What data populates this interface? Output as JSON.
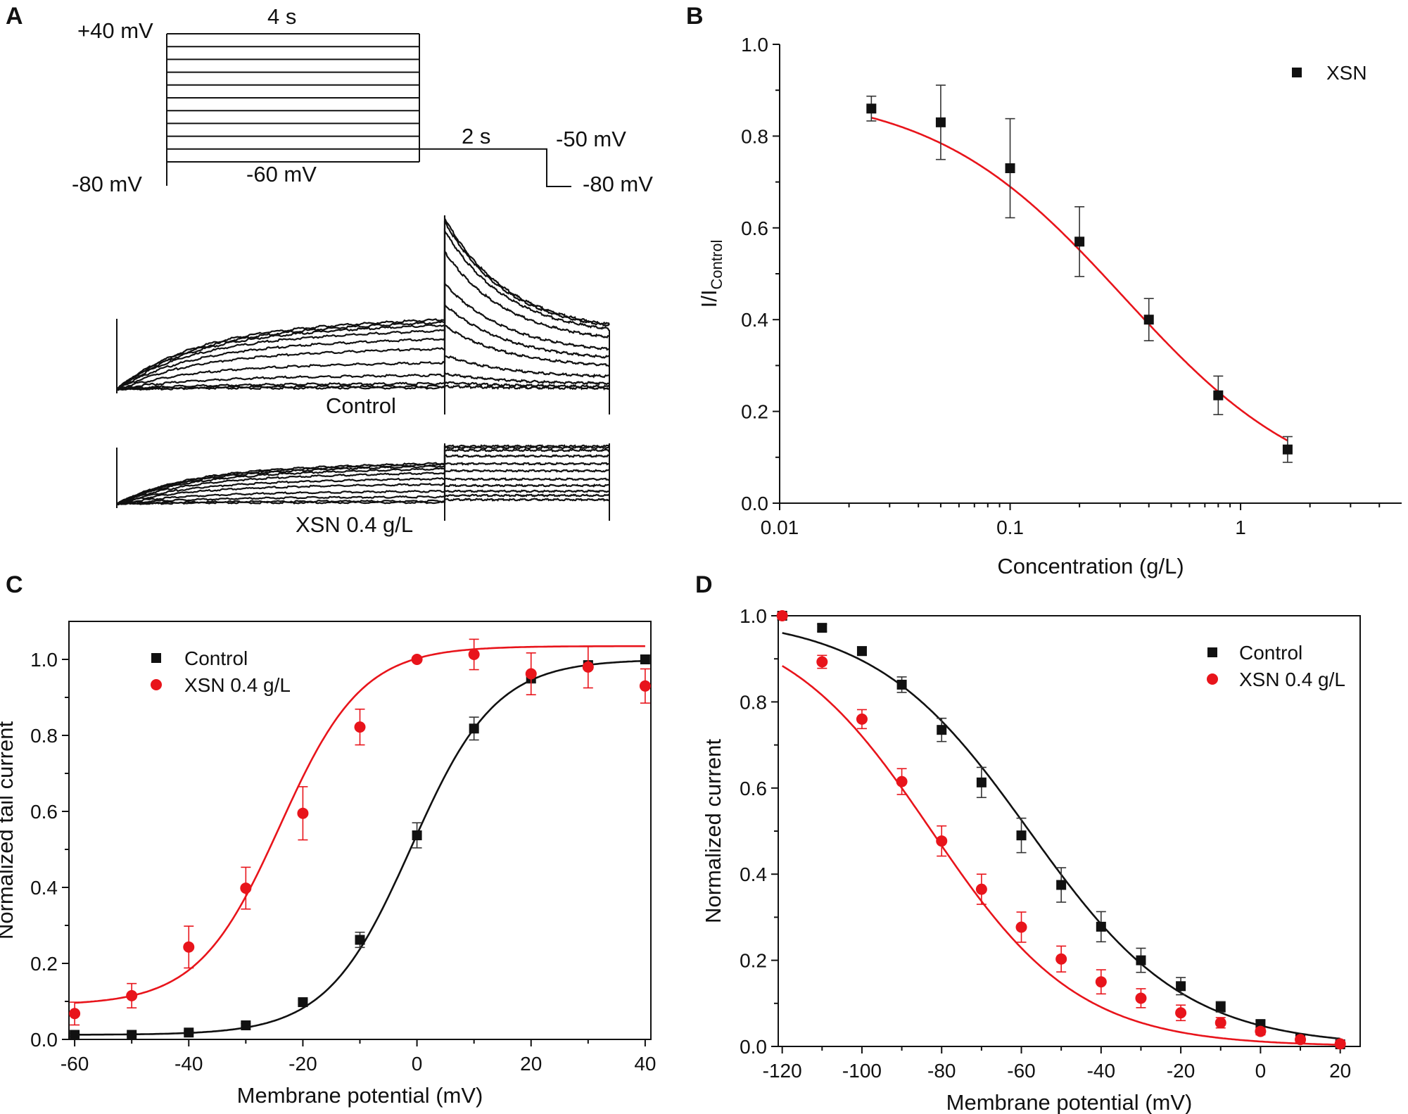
{
  "figure": {
    "panel_letters": [
      "A",
      "B",
      "C",
      "D"
    ],
    "colors": {
      "black": "#111111",
      "red": "#e8141b"
    }
  },
  "panel_a": {
    "protocol_labels": {
      "top_voltage": "+40 mV",
      "step_duration": "4 s",
      "holding_left": "-80 mV",
      "bottom_step": "-60 mV",
      "tail_duration": "2 s",
      "tail_voltage": "-50 mV",
      "holding_right": "-80 mV"
    },
    "trace_labels": {
      "control": "Control",
      "xsn": "XSN 0.4 g/L"
    },
    "step_voltages_mV": [
      -60,
      -50,
      -40,
      -30,
      -20,
      -10,
      0,
      10,
      20,
      30,
      40
    ]
  },
  "chart_data": [
    {
      "panel": "B",
      "type": "scatter",
      "xscale": "log",
      "xlabel": "Concentration (g/L)",
      "ylabel_main": "I/I",
      "ylabel_sub": "Control",
      "xlim": [
        0.01,
        5
      ],
      "ylim": [
        0,
        1.0
      ],
      "xticks": [
        0.01,
        0.1,
        1
      ],
      "xtick_labels": [
        "0.01",
        "0.1",
        "1"
      ],
      "yticks": [
        0.0,
        0.2,
        0.4,
        0.6,
        0.8,
        1.0
      ],
      "ytick_labels": [
        "0.0",
        "0.2",
        "0.4",
        "0.6",
        "0.8",
        "1.0"
      ],
      "legend": "top-right",
      "series": [
        {
          "name": "XSN",
          "marker": "square",
          "color": "#111111",
          "x": [
            0.025,
            0.05,
            0.1,
            0.2,
            0.4,
            0.8,
            1.6
          ],
          "y": [
            0.86,
            0.83,
            0.73,
            0.57,
            0.4,
            0.235,
            0.117
          ],
          "err": [
            0.027,
            0.081,
            0.108,
            0.076,
            0.046,
            0.042,
            0.028
          ],
          "fit": {
            "model": "hill",
            "top": 0.9,
            "bottom": 0.0,
            "ic50": 0.31,
            "n": 1.05,
            "color": "#e8141b"
          }
        }
      ]
    },
    {
      "panel": "C",
      "type": "scatter",
      "xlabel": "Membrane potential (mV)",
      "ylabel": "Normalized tail current",
      "xlim": [
        -61,
        41
      ],
      "ylim": [
        0,
        1.1
      ],
      "xticks": [
        -60,
        -40,
        -20,
        0,
        20,
        40
      ],
      "xtick_labels": [
        "-60",
        "-40",
        "-20",
        "0",
        "20",
        "40"
      ],
      "yticks": [
        0.0,
        0.2,
        0.4,
        0.6,
        0.8,
        1.0
      ],
      "ytick_labels": [
        "0.0",
        "0.2",
        "0.4",
        "0.6",
        "0.8",
        "1.0"
      ],
      "legend": "top-left",
      "series": [
        {
          "name": "Control",
          "marker": "square",
          "color": "#111111",
          "x": [
            -60,
            -50,
            -40,
            -30,
            -20,
            -10,
            0,
            10,
            20,
            30,
            40
          ],
          "y": [
            0.012,
            0.012,
            0.018,
            0.037,
            0.098,
            0.262,
            0.537,
            0.818,
            0.951,
            0.985,
            1.0
          ],
          "err": [
            0.004,
            0.004,
            0.004,
            0.005,
            0.006,
            0.02,
            0.033,
            0.03,
            0.013,
            0.01,
            0.0
          ],
          "fit": {
            "model": "boltzmann",
            "bottom": 0.012,
            "top": 1.0,
            "v_half": -1.0,
            "k": 7.4,
            "color": "#111111"
          }
        },
        {
          "name": "XSN 0.4 g/L",
          "marker": "circle",
          "color": "#e8141b",
          "x": [
            -60,
            -50,
            -40,
            -30,
            -20,
            -10,
            0,
            10,
            20,
            30,
            40
          ],
          "y": [
            0.068,
            0.115,
            0.243,
            0.398,
            0.595,
            0.822,
            1.0,
            1.013,
            0.962,
            0.98,
            0.93
          ],
          "err": [
            0.03,
            0.032,
            0.055,
            0.055,
            0.07,
            0.047,
            0.0,
            0.04,
            0.055,
            0.055,
            0.045
          ],
          "fit": {
            "model": "boltzmann",
            "bottom": 0.09,
            "top": 1.035,
            "v_half": -24.0,
            "k": 7.2,
            "color": "#e8141b"
          }
        }
      ]
    },
    {
      "panel": "D",
      "type": "scatter",
      "xlabel": "Membrane potential (mV)",
      "ylabel": "Normalized current",
      "xlim": [
        -121,
        25
      ],
      "ylim": [
        0,
        1.0
      ],
      "xticks": [
        -120,
        -100,
        -80,
        -60,
        -40,
        -20,
        0,
        20
      ],
      "xtick_labels": [
        "-120",
        "-100",
        "-80",
        "-60",
        "-40",
        "-20",
        "0",
        "20"
      ],
      "yticks": [
        0.0,
        0.2,
        0.4,
        0.6,
        0.8,
        1.0
      ],
      "ytick_labels": [
        "0.0",
        "0.2",
        "0.4",
        "0.6",
        "0.8",
        "1.0"
      ],
      "legend": "top-right",
      "series": [
        {
          "name": "Control",
          "marker": "square",
          "color": "#111111",
          "x": [
            -120,
            -110,
            -100,
            -90,
            -80,
            -70,
            -60,
            -50,
            -40,
            -30,
            -20,
            -10,
            0,
            10,
            20
          ],
          "y": [
            1.0,
            0.972,
            0.918,
            0.84,
            0.735,
            0.613,
            0.49,
            0.375,
            0.278,
            0.2,
            0.14,
            0.092,
            0.052,
            0.018,
            0.005
          ],
          "err": [
            0.0,
            0.008,
            0.01,
            0.018,
            0.027,
            0.035,
            0.04,
            0.04,
            0.035,
            0.028,
            0.02,
            0.012,
            0.008,
            0.005,
            0.003
          ],
          "fit": {
            "model": "boltzmann_inact",
            "v_half": -58.0,
            "k": 19.5,
            "color": "#111111"
          }
        },
        {
          "name": "XSN 0.4 g/L",
          "marker": "circle",
          "color": "#e8141b",
          "x": [
            -120,
            -110,
            -100,
            -90,
            -80,
            -70,
            -60,
            -50,
            -40,
            -30,
            -20,
            -10,
            0,
            10,
            20
          ],
          "y": [
            1.0,
            0.893,
            0.76,
            0.615,
            0.477,
            0.365,
            0.277,
            0.203,
            0.15,
            0.112,
            0.078,
            0.055,
            0.035,
            0.016,
            0.006
          ],
          "err": [
            0.0,
            0.015,
            0.022,
            0.03,
            0.035,
            0.035,
            0.035,
            0.03,
            0.028,
            0.022,
            0.018,
            0.012,
            0.008,
            0.005,
            0.003
          ],
          "fit": {
            "model": "boltzmann_inact",
            "v_half": -82.5,
            "k": 18.5,
            "color": "#e8141b"
          }
        }
      ]
    }
  ]
}
